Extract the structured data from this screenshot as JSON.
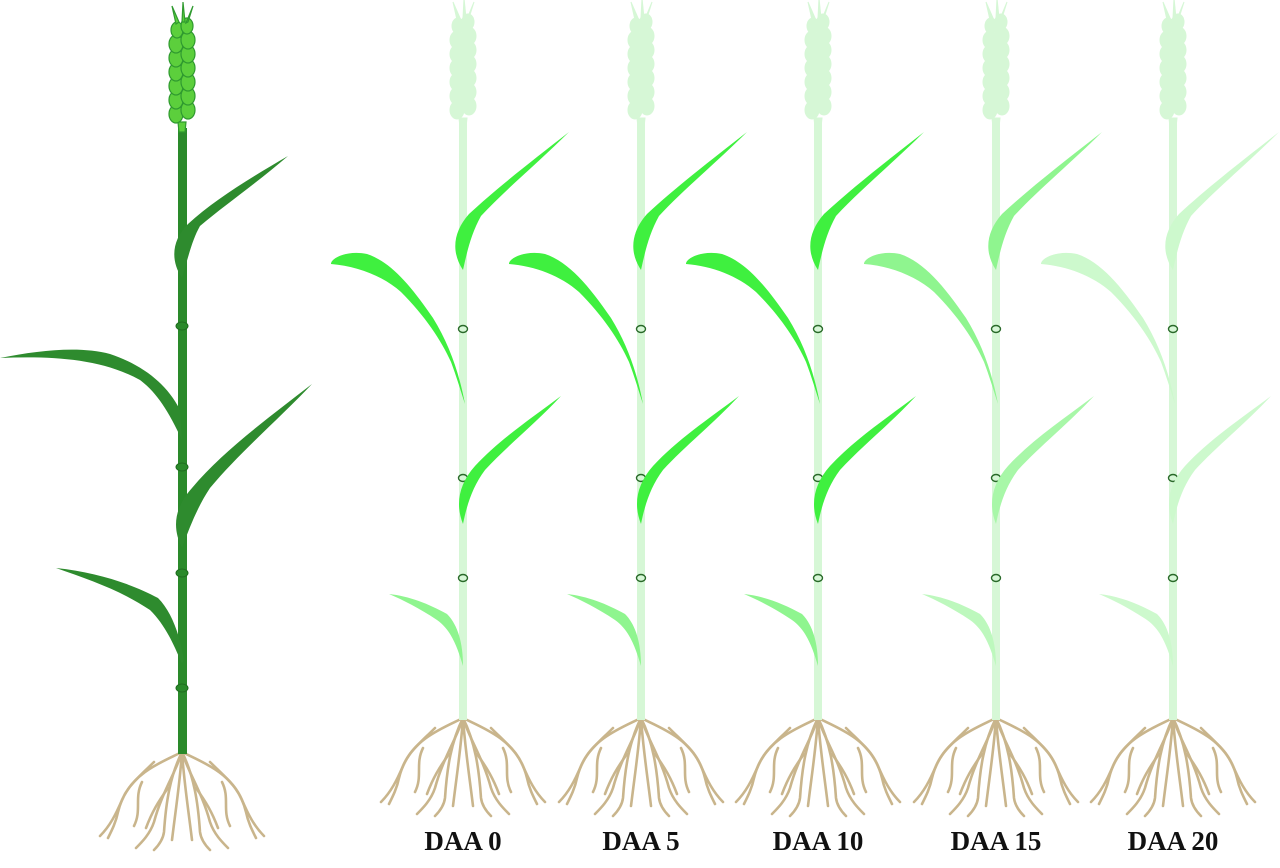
{
  "colors": {
    "reference_leaf": "#2e8b2e",
    "reference_stem": "#2a8a2a",
    "reference_spike": "#5ccf3c",
    "green_leaf": "#3ff03f",
    "senescent_leaf": "#8ff58f",
    "pale_leaf": "#cdf9cd",
    "pale_stem": "#d6f7d6",
    "root": "#c9b58c",
    "label": "#111111"
  },
  "stages": [
    {
      "label": "DAA 0",
      "leaf_colors": [
        "#3ff03f",
        "#3ff03f",
        "#3ff03f",
        "#8ff58f"
      ]
    },
    {
      "label": "DAA 5",
      "leaf_colors": [
        "#3ff03f",
        "#3ff03f",
        "#3ff03f",
        "#8ff58f"
      ]
    },
    {
      "label": "DAA 10",
      "leaf_colors": [
        "#3ff03f",
        "#3ff03f",
        "#3ff03f",
        "#8ff58f"
      ]
    },
    {
      "label": "DAA 15",
      "leaf_colors": [
        "#8ff58f",
        "#8ff58f",
        "#a8f7a8",
        "#bdf8bd"
      ]
    },
    {
      "label": "DAA 20",
      "leaf_colors": [
        "#cdf9cd",
        "#cdf9cd",
        "#cdf9cd",
        "#cdf9cd"
      ]
    }
  ]
}
